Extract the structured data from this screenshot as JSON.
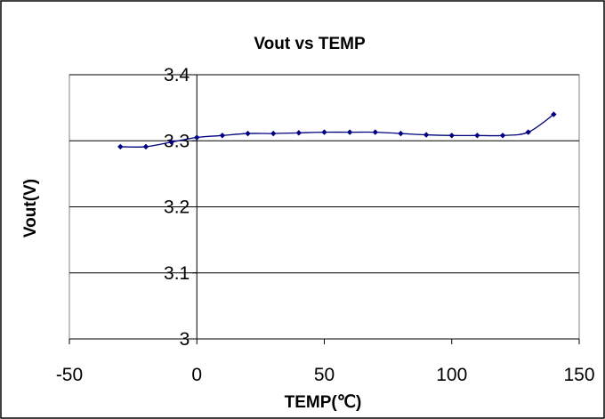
{
  "chart_data": {
    "type": "line",
    "title": "Vout vs TEMP",
    "xlabel": "TEMP(℃)",
    "ylabel": "Vout(V)",
    "xlim": [
      -50,
      150
    ],
    "ylim": [
      3.0,
      3.4
    ],
    "x_ticks": [
      "-50",
      "0",
      "50",
      "100",
      "150"
    ],
    "y_ticks": [
      "3",
      "3.1",
      "3.2",
      "3.3",
      "3.4"
    ],
    "grid": "horizontal",
    "legend": "none",
    "line_color": "#000080",
    "series": [
      {
        "x": [
          -30,
          -20,
          -10,
          0,
          10,
          20,
          30,
          40,
          50,
          60,
          70,
          80,
          90,
          100,
          110,
          120,
          130,
          140
        ],
        "y": [
          3.291,
          3.291,
          3.298,
          3.305,
          3.308,
          3.311,
          3.311,
          3.312,
          3.313,
          3.313,
          3.313,
          3.311,
          3.309,
          3.308,
          3.308,
          3.308,
          3.313,
          3.34
        ]
      }
    ]
  }
}
